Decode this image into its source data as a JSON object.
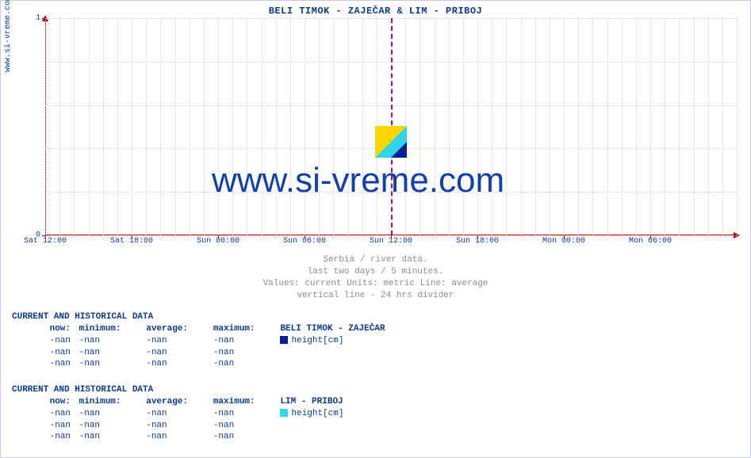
{
  "chart": {
    "type": "line",
    "title": "BELI TIMOK -  ZAJEČAR &  LIM -  PRIBOJ",
    "ylabel_side": "www.si-vreme.com",
    "watermark_text": "www.si-vreme.com",
    "background_color": "#ffffff",
    "grid_color": "#e8c8d8",
    "axis_color": "#bb0000",
    "text_color": "#0a3a8a",
    "caption_color": "#8a8aa0",
    "title_fontsize": 12,
    "tick_fontsize": 10,
    "watermark_fontsize": 44,
    "xlim": [
      0,
      48
    ],
    "ylim": [
      0,
      1
    ],
    "yticks": [
      0,
      1
    ],
    "xticks": [
      {
        "pos": 0,
        "label": "Sat 12:00"
      },
      {
        "pos": 6,
        "label": "Sat 18:00"
      },
      {
        "pos": 12,
        "label": "Sun 00:00"
      },
      {
        "pos": 18,
        "label": "Sun 06:00"
      },
      {
        "pos": 24,
        "label": "Sun 12:00"
      },
      {
        "pos": 30,
        "label": "Sun 18:00"
      },
      {
        "pos": 36,
        "label": "Mon 00:00"
      },
      {
        "pos": 42,
        "label": "Mon 06:00"
      }
    ],
    "grid_major_positions": [
      0,
      6,
      12,
      18,
      24,
      30,
      36,
      42
    ],
    "divider_24h_pos": 24,
    "divider_color": "#cc0066",
    "logo_colors": {
      "yellow": "#ffd400",
      "cyan": "#2fd5e8",
      "blue": "#0a1f95"
    }
  },
  "caption": {
    "line1": "Serbia / river data.",
    "line2": "last two days / 5 minutes.",
    "line3": "Values: current  Units: metric  Line: average",
    "line4": "vertical line - 24 hrs  divider"
  },
  "sections": [
    {
      "title": "CURRENT AND HISTORICAL DATA",
      "headers": [
        "now:",
        "minimum:",
        "average:",
        "maximum:"
      ],
      "series_label": "BELI TIMOK -  ZAJEČAR",
      "swatch_color": "#0a1f95",
      "unit_label": "height[cm]",
      "rows": [
        [
          "-nan",
          "-nan",
          "-nan",
          "-nan"
        ],
        [
          "-nan",
          "-nan",
          "-nan",
          "-nan"
        ],
        [
          "-nan",
          "-nan",
          "-nan",
          "-nan"
        ]
      ]
    },
    {
      "title": "CURRENT AND HISTORICAL DATA",
      "headers": [
        "now:",
        "minimum:",
        "average:",
        "maximum:"
      ],
      "series_label": "LIM -  PRIBOJ",
      "swatch_color": "#2fd5e8",
      "unit_label": "height[cm]",
      "rows": [
        [
          "-nan",
          "-nan",
          "-nan",
          "-nan"
        ],
        [
          "-nan",
          "-nan",
          "-nan",
          "-nan"
        ],
        [
          "-nan",
          "-nan",
          "-nan",
          "-nan"
        ]
      ]
    }
  ]
}
